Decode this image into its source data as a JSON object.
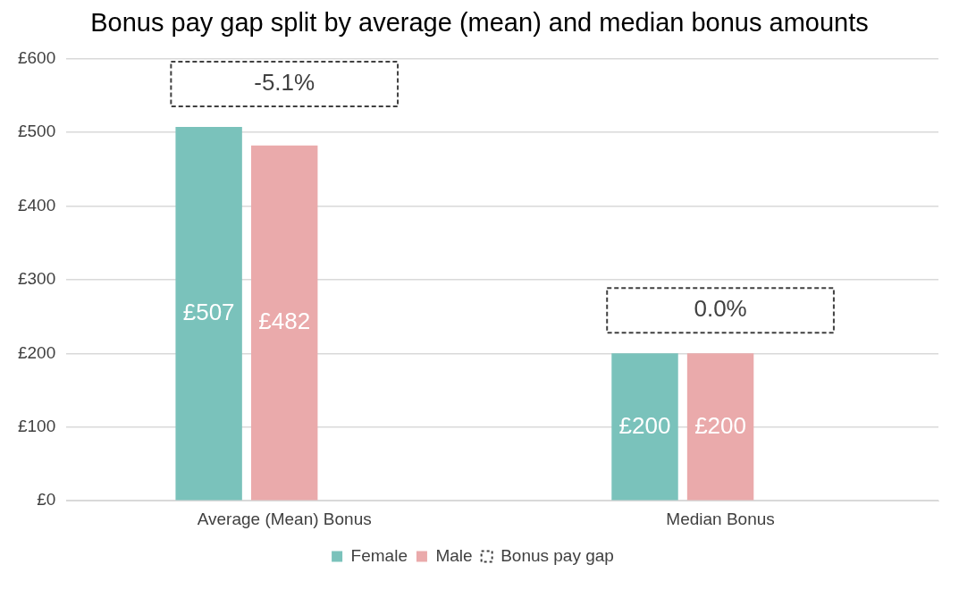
{
  "chart_data": {
    "type": "bar",
    "title": "Bonus pay gap split by average (mean) and median bonus amounts",
    "categories": [
      "Average (Mean) Bonus",
      "Median Bonus"
    ],
    "series": [
      {
        "name": "Female",
        "color": "#7ac2bb",
        "values": [
          507,
          200
        ],
        "value_labels": [
          "£507",
          "£200"
        ]
      },
      {
        "name": "Male",
        "color": "#eaaaab",
        "values": [
          482,
          200
        ],
        "value_labels": [
          "£482",
          "£200"
        ]
      },
      {
        "name": "Bonus pay gap",
        "color": "#404040",
        "line_style": "dashed",
        "values": [
          null,
          null
        ]
      }
    ],
    "annotations": [
      "-5.1%",
      "0.0%"
    ],
    "ylim": [
      0,
      600
    ],
    "yticks": [
      {
        "value": 0,
        "label": "£0"
      },
      {
        "value": 100,
        "label": "£100"
      },
      {
        "value": 200,
        "label": "£200"
      },
      {
        "value": 300,
        "label": "£300"
      },
      {
        "value": 400,
        "label": "£400"
      },
      {
        "value": 500,
        "label": "£500"
      },
      {
        "value": 600,
        "label": "£600"
      }
    ],
    "grid": "y",
    "legend": "bottom"
  }
}
